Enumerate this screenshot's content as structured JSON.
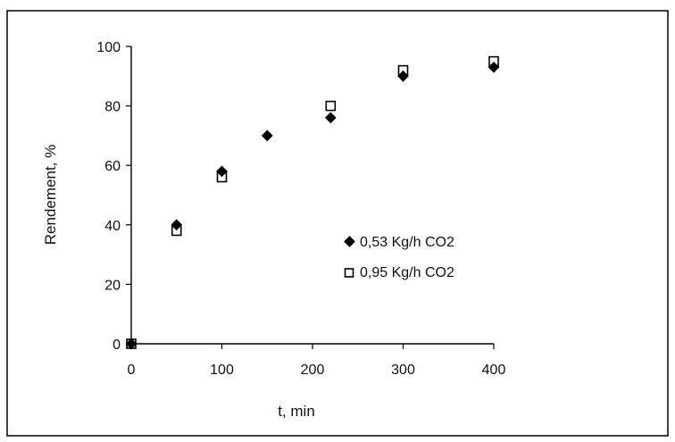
{
  "chart_data": {
    "type": "scatter",
    "title": "",
    "xlabel": "t, min",
    "ylabel": "Rendement, %",
    "xlim": [
      0,
      400
    ],
    "ylim": [
      0,
      100
    ],
    "x_ticks": [
      0,
      100,
      200,
      300,
      400
    ],
    "y_ticks": [
      0,
      20,
      40,
      60,
      80,
      100
    ],
    "grid": false,
    "legend_position": "center-right",
    "series": [
      {
        "name": "0,53 Kg/h CO2",
        "marker": "diamond-filled",
        "color": "#000000",
        "points": [
          {
            "x": 0,
            "y": 0
          },
          {
            "x": 50,
            "y": 40
          },
          {
            "x": 100,
            "y": 58
          },
          {
            "x": 150,
            "y": 70
          },
          {
            "x": 220,
            "y": 76
          },
          {
            "x": 300,
            "y": 90
          },
          {
            "x": 400,
            "y": 93
          }
        ]
      },
      {
        "name": "0,95 Kg/h CO2",
        "marker": "square-open",
        "color": "#000000",
        "points": [
          {
            "x": 0,
            "y": 0
          },
          {
            "x": 50,
            "y": 38
          },
          {
            "x": 100,
            "y": 56
          },
          {
            "x": 220,
            "y": 80
          },
          {
            "x": 300,
            "y": 92
          },
          {
            "x": 400,
            "y": 95
          }
        ]
      }
    ]
  }
}
